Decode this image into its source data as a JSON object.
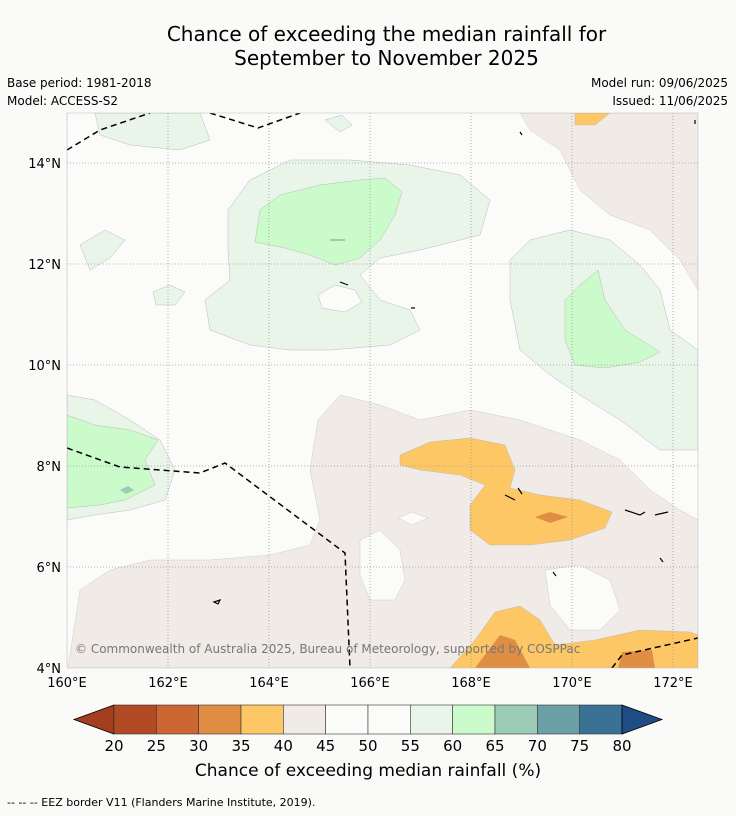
{
  "title_line1": "Chance of exceeding the median rainfall for",
  "title_line2": "September to November 2025",
  "base_period": "Base period: 1981-2018",
  "model": "Model: ACCESS-S2",
  "model_run": "Model run: 09/06/2025",
  "issued": "Issued: 11/06/2025",
  "copyright": "© Commonwealth of Australia 2025, Bureau of Meteorology, supported by COSPPac",
  "lat_ticks": [
    "14°N",
    "12°N",
    "10°N",
    "8°N",
    "6°N",
    "4°N"
  ],
  "lon_ticks": [
    "160°E",
    "162°E",
    "164°E",
    "166°E",
    "168°E",
    "170°E",
    "172°E"
  ],
  "colorbar": {
    "title": "Chance of exceeding median rainfall (%)",
    "ticks": [
      "20",
      "25",
      "30",
      "35",
      "40",
      "45",
      "50",
      "55",
      "60",
      "65",
      "70",
      "75",
      "80"
    ],
    "colors": [
      "#a33f20",
      "#b24a25",
      "#cc6633",
      "#e08e44",
      "#fdc765",
      "#f0ebe7",
      "#fbfcfa",
      "#fbfcfa",
      "#e9f5e9",
      "#cbfacb",
      "#9ccbb6",
      "#6c9fa6",
      "#3b7194",
      "#1f4c82"
    ]
  },
  "footnote": "--  --  -- EEZ border V11 (Flanders Marine Institute, 2019)."
}
